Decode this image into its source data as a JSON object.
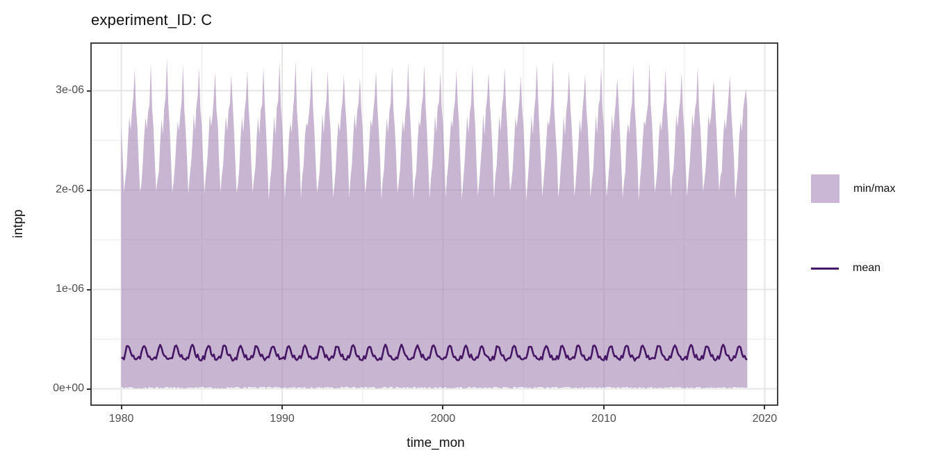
{
  "title": "experiment_ID: C",
  "legend": {
    "minmax_label": "min/max",
    "mean_label": "mean"
  },
  "colors": {
    "ribbon_fill": "rgba(154,120,172,0.55)",
    "legend_swatch": "#c9b7d5",
    "mean_line": "#451765",
    "panel_border": "#404040",
    "grid_major": "#e6e6e6",
    "grid_minor": "#f3f3f3",
    "axis_text": "#4d4d4d",
    "tick_mark": "#333333",
    "text": "#111111",
    "panel_bg": "#ffffff"
  },
  "chart_data": {
    "type": "area",
    "title": "experiment_ID: C",
    "xlabel": "time_mon",
    "ylabel": "intpp",
    "y_unit_scale": "values are in units of 1e-06",
    "grid": true,
    "legend_position": "right",
    "xlim": [
      1978.16,
      2020.76
    ],
    "ylim_e6": [
      -0.157,
      3.472
    ],
    "x_major_ticks": [
      1980,
      1990,
      2000,
      2010,
      2020
    ],
    "x_minor_ticks": [
      1985,
      1995,
      2005,
      2015
    ],
    "y_major_ticks": [
      {
        "v": 0,
        "label": "0e+00"
      },
      {
        "v": 1,
        "label": "1e-06"
      },
      {
        "v": 2,
        "label": "2e-06"
      },
      {
        "v": 3,
        "label": "3e-06"
      }
    ],
    "y_minor_ticks": [
      0.5,
      1.5,
      2.5
    ],
    "series": {
      "year_start": 1980,
      "year_end": 2018,
      "months_per_year": 12,
      "max_monthly_cycle_e6": [
        2.62,
        2.3,
        1.94,
        2.1,
        2.22,
        2.5,
        2.72,
        2.6,
        2.8,
        2.9,
        3.2,
        2.85
      ],
      "spike_month_index": 10,
      "max_spike_by_year_e6": [
        3.22,
        3.28,
        3.33,
        3.27,
        3.23,
        3.19,
        3.16,
        3.2,
        3.24,
        3.3,
        3.3,
        3.25,
        3.2,
        3.16,
        3.13,
        3.2,
        3.24,
        3.28,
        3.26,
        3.19,
        3.21,
        3.26,
        3.18,
        3.23,
        3.15,
        3.27,
        3.31,
        3.2,
        3.16,
        3.24,
        3.12,
        3.26,
        3.29,
        3.22,
        3.18,
        3.24,
        3.1,
        3.15,
        3.02
      ],
      "min_monthly_base_e6": 0.012,
      "mean_monthly_cycle_e6": [
        0.3,
        0.32,
        0.305,
        0.36,
        0.42,
        0.435,
        0.415,
        0.36,
        0.325,
        0.335,
        0.305,
        0.295
      ],
      "jitter": {
        "seed": 7,
        "max": 0.05,
        "mean": 0.012,
        "min": 0.008
      }
    }
  }
}
